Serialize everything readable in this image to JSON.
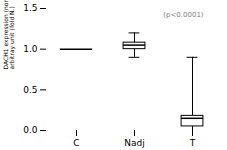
{
  "chart_data": {
    "type": "box",
    "categories": [
      "C",
      "Nadj",
      "T"
    ],
    "ylabel": "DACH1 expression (norm to beta actin\narbitray unit (fold N.)",
    "annotation": "(p<0.0001)",
    "boxes": [
      {
        "category": "C",
        "type": "line",
        "median": 1.0
      },
      {
        "category": "Nadj",
        "type": "box",
        "median": 1.05,
        "q1": 1.0,
        "q3": 1.08,
        "whisker_low": 0.9,
        "whisker_high": 1.2
      },
      {
        "category": "T",
        "type": "box",
        "median": 0.15,
        "q1": 0.05,
        "q3": 0.18,
        "whisker_low": 0.0,
        "whisker_high": 0.9
      }
    ],
    "ylim": [
      0.0,
      1.5
    ],
    "yticks": [
      {
        "value": 0.0,
        "label": "0.0"
      },
      0.5,
      {
        "value": 1.0,
        "label": "1.0"
      },
      1.5
    ],
    "grid": false
  }
}
